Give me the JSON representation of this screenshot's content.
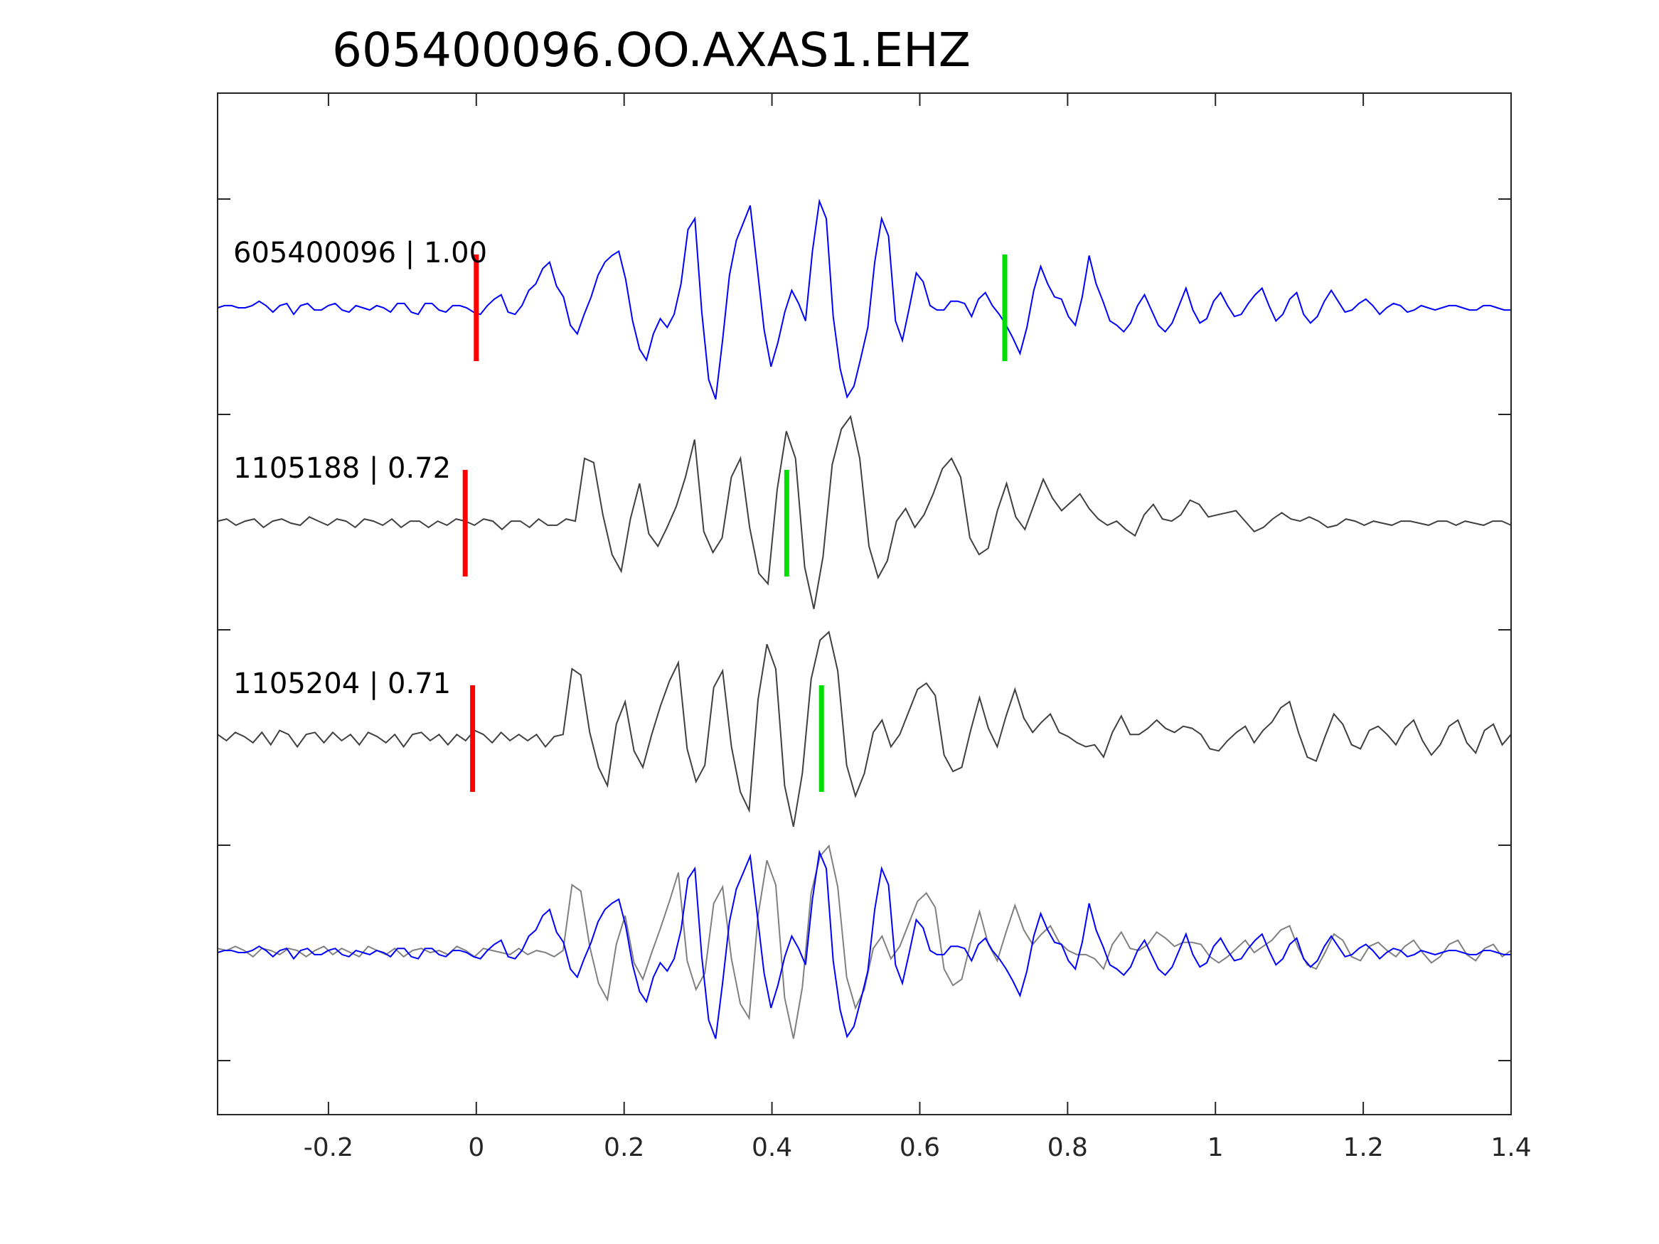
{
  "chart_data": {
    "type": "line",
    "title": "605400096.OO.AXAS1.EHZ",
    "xlabel": "",
    "ylabel": "",
    "xlim": [
      -0.35,
      1.4
    ],
    "x_ticks": [
      -0.2,
      0,
      0.2,
      0.4,
      0.6,
      0.8,
      1,
      1.2,
      1.4
    ],
    "x_tick_labels": [
      "-0.2",
      "0",
      "0.2",
      "0.4",
      "0.6",
      "0.8",
      "1",
      "1.2",
      "1.4"
    ],
    "y_tick_labels": [],
    "grid": false,
    "legend": "none",
    "traces": [
      {
        "label": "605400096 | 1.00",
        "color": "#0000ff",
        "p_pick": 0.0,
        "s_pick": 0.715,
        "values": [
          0,
          0.1,
          0.1,
          0,
          0,
          0.1,
          0.3,
          0.1,
          -0.2,
          0.1,
          0.2,
          -0.3,
          0.1,
          0.2,
          -0.1,
          -0.1,
          0.1,
          0.2,
          -0.1,
          -0.2,
          0.1,
          0,
          -0.1,
          0.1,
          0,
          -0.2,
          0.2,
          0.2,
          -0.2,
          -0.3,
          0.2,
          0.2,
          -0.1,
          -0.2,
          0.1,
          0.1,
          0,
          -0.2,
          -0.3,
          0.1,
          0.4,
          0.6,
          -0.2,
          -0.3,
          0.1,
          0.8,
          1.1,
          1.8,
          2.1,
          1.0,
          0.5,
          -0.8,
          -1.2,
          -0.3,
          0.5,
          1.5,
          2.1,
          2.4,
          2.6,
          1.3,
          -0.6,
          -1.9,
          -2.4,
          -1.2,
          -0.5,
          -0.9,
          -0.3,
          1.1,
          3.6,
          4.1,
          -0.2,
          -3.3,
          -4.2,
          -1.5,
          1.5,
          3.1,
          3.9,
          4.7,
          1.9,
          -1.0,
          -2.7,
          -1.6,
          -0.2,
          0.8,
          0.2,
          -0.6,
          2.6,
          4.9,
          4.1,
          -0.4,
          -2.8,
          -4.1,
          -3.6,
          -2.3,
          -0.9,
          2.1,
          4.1,
          3.3,
          -0.6,
          -1.5,
          0,
          1.6,
          1.2,
          0.1,
          -0.1,
          -0.1,
          0.3,
          0.3,
          0.2,
          -0.4,
          0.4,
          0.7,
          0.1,
          -0.3,
          -0.8,
          -1.4,
          -2.1,
          -0.9,
          0.8,
          1.9,
          1.1,
          0.5,
          0.4,
          -0.4,
          -0.8,
          0.5,
          2.4,
          1.1,
          0.3,
          -0.6,
          -0.8,
          -1.1,
          -0.7,
          0.1,
          0.6,
          -0.1,
          -0.8,
          -1.1,
          -0.7,
          0.1,
          0.9,
          -0.1,
          -0.7,
          -0.5,
          0.3,
          0.7,
          0.1,
          -0.4,
          -0.3,
          0.2,
          0.6,
          0.9,
          0.1,
          -0.6,
          -0.3,
          0.4,
          0.7,
          -0.3,
          -0.7,
          -0.4,
          0.3,
          0.8,
          0.3,
          -0.2,
          -0.1,
          0.2,
          0.4,
          0.1,
          -0.3,
          0,
          0.2,
          0.1,
          -0.2,
          -0.1,
          0.1,
          0,
          -0.1,
          0,
          0.1,
          0.1,
          0,
          -0.1,
          -0.1,
          0.1,
          0.1,
          0,
          -0.1,
          -0.1
        ]
      },
      {
        "label": "1105188 | 0.72",
        "color": "#404040",
        "p_pick": -0.015,
        "s_pick": 0.42,
        "values": [
          0.1,
          0.2,
          -0.1,
          0.1,
          0.2,
          -0.2,
          0.1,
          0.2,
          0,
          -0.1,
          0.3,
          0.1,
          -0.1,
          0.2,
          0.1,
          -0.2,
          0.2,
          0.1,
          -0.1,
          0.2,
          -0.2,
          0.1,
          0.1,
          -0.2,
          0.1,
          -0.1,
          0.2,
          0.1,
          -0.1,
          0.2,
          0.1,
          -0.3,
          0.1,
          0.1,
          -0.2,
          0.2,
          -0.1,
          -0.1,
          0.2,
          0.1,
          3.1,
          2.9,
          0.4,
          -1.5,
          -2.3,
          0.2,
          1.9,
          -0.5,
          -1.1,
          -0.2,
          0.8,
          2.2,
          4.0,
          -0.4,
          -1.4,
          -0.7,
          2.2,
          3.1,
          -0.2,
          -2.4,
          -2.9,
          1.6,
          4.4,
          3.1,
          -2.1,
          -4.1,
          -1.6,
          2.8,
          4.5,
          5.1,
          3.1,
          -1.1,
          -2.6,
          -1.8,
          0.1,
          0.7,
          -0.2,
          0.4,
          1.4,
          2.6,
          3.1,
          2.2,
          -0.7,
          -1.5,
          -1.2,
          0.6,
          1.9,
          0.3,
          -0.3,
          0.9,
          2.1,
          1.2,
          0.6,
          1.0,
          1.4,
          0.7,
          0.2,
          -0.1,
          0.1,
          -0.3,
          -0.6,
          0.4,
          0.9,
          0.2,
          0.1,
          0.4,
          1.1,
          0.9,
          0.3,
          0.4,
          0.5,
          0.6,
          0.1,
          -0.4,
          -0.2,
          0.2,
          0.5,
          0.2,
          0.1,
          0.3,
          0.1,
          -0.2,
          -0.1,
          0.2,
          0.1,
          -0.1,
          0.1,
          0,
          -0.1,
          0.1,
          0.1,
          0,
          -0.1,
          0.1,
          0.1,
          -0.1,
          0.1,
          0,
          -0.1,
          0.1,
          0.1,
          -0.1
        ]
      },
      {
        "label": "1105204 | 0.71",
        "color": "#404040",
        "p_pick": -0.005,
        "s_pick": 0.467,
        "values": [
          0.2,
          -0.1,
          0.3,
          0.1,
          -0.2,
          0.3,
          -0.3,
          0.4,
          0.2,
          -0.4,
          0.2,
          0.3,
          -0.2,
          0.3,
          -0.1,
          0.2,
          -0.3,
          0.3,
          0.1,
          -0.2,
          0.2,
          -0.4,
          0.2,
          0.3,
          -0.1,
          0.2,
          -0.3,
          0.2,
          -0.1,
          0.4,
          0.2,
          -0.2,
          0.3,
          -0.1,
          0.2,
          -0.1,
          0.2,
          -0.4,
          0.1,
          0.2,
          3.4,
          3.1,
          0.3,
          -1.4,
          -2.3,
          0.7,
          1.8,
          -0.6,
          -1.4,
          0.2,
          1.6,
          2.8,
          3.7,
          -0.5,
          -2.1,
          -1.3,
          2.5,
          3.3,
          -0.4,
          -2.6,
          -3.5,
          1.9,
          4.6,
          3.4,
          -2.3,
          -4.3,
          -1.7,
          2.9,
          4.8,
          5.2,
          3.3,
          -1.3,
          -2.8,
          -1.7,
          0.3,
          0.9,
          -0.4,
          0.2,
          1.3,
          2.4,
          2.7,
          2.1,
          -0.8,
          -1.6,
          -1.4,
          0.4,
          2.0,
          0.5,
          -0.4,
          1.1,
          2.4,
          1.0,
          0.3,
          0.8,
          1.2,
          0.3,
          0.1,
          -0.2,
          -0.4,
          -0.3,
          -0.9,
          0.3,
          1.1,
          0.2,
          0.2,
          0.5,
          0.9,
          0.5,
          0.3,
          0.6,
          0.5,
          0.2,
          -0.5,
          -0.6,
          -0.1,
          0.3,
          0.6,
          -0.2,
          0.4,
          0.8,
          1.5,
          1.8,
          0.3,
          -0.9,
          -1.1,
          0.1,
          1.2,
          0.7,
          -0.3,
          -0.5,
          0.4,
          0.6,
          0.2,
          -0.3,
          0.5,
          0.9,
          -0.1,
          -0.8,
          -0.3,
          0.6,
          0.9,
          -0.2,
          -0.7,
          0.4,
          0.7,
          -0.3,
          0.2
        ]
      },
      {
        "label": "",
        "color": "#808080",
        "values": [
          0.2,
          0.1,
          0.3,
          0.1,
          -0.2,
          0.2,
          0.1,
          -0.1,
          0.2,
          0.1,
          -0.2,
          0.1,
          0.3,
          -0.1,
          0.2,
          0,
          -0.2,
          0.3,
          0.1,
          -0.1,
          0.2,
          -0.2,
          0.1,
          0.2,
          0,
          0.1,
          -0.1,
          0.3,
          0.1,
          -0.2,
          0.2,
          0.1,
          0,
          -0.1,
          0.2,
          -0.1,
          0.1,
          0,
          -0.2,
          0.1,
          3.3,
          3.0,
          0.3,
          -1.5,
          -2.3,
          0.4,
          1.8,
          -0.5,
          -1.3,
          0,
          1.2,
          2.5,
          3.9,
          -0.4,
          -1.8,
          -1.0,
          2.4,
          3.2,
          -0.3,
          -2.5,
          -3.2,
          1.8,
          4.5,
          3.3,
          -2.2,
          -4.2,
          -1.7,
          2.9,
          4.7,
          5.2,
          3.2,
          -1.2,
          -2.7,
          -1.8,
          0.2,
          0.8,
          -0.3,
          0.3,
          1.4,
          2.5,
          2.9,
          2.2,
          -0.8,
          -1.6,
          -1.3,
          0.5,
          2.0,
          0.4,
          -0.4,
          1.0,
          2.3,
          1.1,
          0.4,
          0.9,
          1.3,
          0.5,
          0.1,
          -0.1,
          -0.1,
          -0.3,
          -0.8,
          0.4,
          1.0,
          0.2,
          0.1,
          0.4,
          1.0,
          0.7,
          0.3,
          0.5,
          0.5,
          0.4,
          -0.2,
          -0.5,
          -0.2,
          0.2,
          0.6,
          0,
          0.3,
          0.6,
          1.1,
          1.3,
          0.2,
          -0.6,
          -0.8,
          0,
          0.9,
          0.6,
          -0.2,
          -0.4,
          0.3,
          0.5,
          0.1,
          -0.2,
          0.3,
          0.6,
          0,
          -0.5,
          -0.2,
          0.4,
          0.6,
          -0.1,
          -0.4,
          0.2,
          0.4,
          -0.2,
          0.1
        ]
      },
      {
        "label": "",
        "color": "#0000ff",
        "values": [
          0,
          0.1,
          0.1,
          0,
          0,
          0.1,
          0.3,
          0.1,
          -0.2,
          0.1,
          0.2,
          -0.3,
          0.1,
          0.2,
          -0.1,
          -0.1,
          0.1,
          0.2,
          -0.1,
          -0.2,
          0.1,
          0,
          -0.1,
          0.1,
          0,
          -0.2,
          0.2,
          0.2,
          -0.2,
          -0.3,
          0.2,
          0.2,
          -0.1,
          -0.2,
          0.1,
          0.1,
          0,
          -0.2,
          -0.3,
          0.1,
          0.4,
          0.6,
          -0.2,
          -0.3,
          0.1,
          0.8,
          1.1,
          1.8,
          2.1,
          1.0,
          0.5,
          -0.8,
          -1.2,
          -0.3,
          0.5,
          1.5,
          2.1,
          2.4,
          2.6,
          1.3,
          -0.6,
          -1.9,
          -2.4,
          -1.2,
          -0.5,
          -0.9,
          -0.3,
          1.1,
          3.6,
          4.1,
          -0.2,
          -3.3,
          -4.2,
          -1.5,
          1.5,
          3.1,
          3.9,
          4.7,
          1.9,
          -1.0,
          -2.7,
          -1.6,
          -0.2,
          0.8,
          0.2,
          -0.6,
          2.6,
          4.9,
          4.1,
          -0.4,
          -2.8,
          -4.1,
          -3.6,
          -2.3,
          -0.9,
          2.1,
          4.1,
          3.3,
          -0.6,
          -1.5,
          0,
          1.6,
          1.2,
          0.1,
          -0.1,
          -0.1,
          0.3,
          0.3,
          0.2,
          -0.4,
          0.4,
          0.7,
          0.1,
          -0.3,
          -0.8,
          -1.4,
          -2.1,
          -0.9,
          0.8,
          1.9,
          1.1,
          0.5,
          0.4,
          -0.4,
          -0.8,
          0.5,
          2.4,
          1.1,
          0.3,
          -0.6,
          -0.8,
          -1.1,
          -0.7,
          0.1,
          0.6,
          -0.1,
          -0.8,
          -1.1,
          -0.7,
          0.1,
          0.9,
          -0.1,
          -0.7,
          -0.5,
          0.3,
          0.7,
          0.1,
          -0.4,
          -0.3,
          0.2,
          0.6,
          0.9,
          0.1,
          -0.6,
          -0.3,
          0.4,
          0.7,
          -0.3,
          -0.7,
          -0.4,
          0.3,
          0.8,
          0.3,
          -0.2,
          -0.1,
          0.2,
          0.4,
          0.1,
          -0.3,
          0,
          0.2,
          0.1,
          -0.2,
          -0.1,
          0.1,
          0,
          -0.1,
          0,
          0.1,
          0.1,
          0,
          -0.1,
          -0.1,
          0.1,
          0.1,
          0,
          -0.1,
          -0.1
        ]
      }
    ],
    "pick_colors": {
      "p": "#ff0000",
      "s": "#00dd00"
    }
  }
}
